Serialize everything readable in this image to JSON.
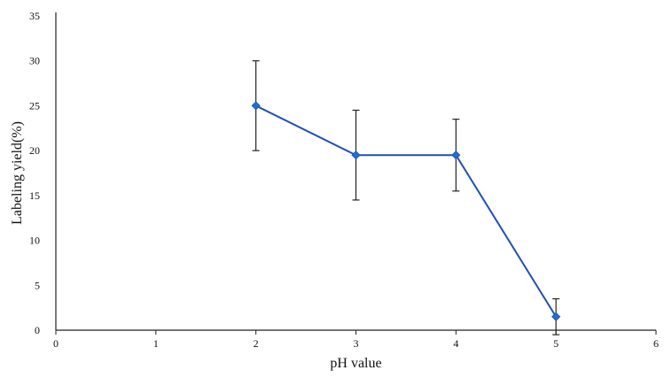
{
  "chart_data": {
    "type": "line",
    "xlabel": "pH value",
    "ylabel": "Labeling yield(%)",
    "xlim": [
      0,
      6
    ],
    "ylim": [
      0,
      35
    ],
    "x_ticks": [
      "0",
      "1",
      "2",
      "3",
      "4",
      "5",
      "6"
    ],
    "y_ticks": [
      "0",
      "5",
      "10",
      "15",
      "20",
      "25",
      "30",
      "35"
    ],
    "grid": false,
    "series": [
      {
        "x": [
          2,
          3,
          4,
          5
        ],
        "y": [
          25,
          19.5,
          19.5,
          1.5
        ],
        "error": [
          5,
          5,
          4,
          2
        ],
        "color": "#1f4fb4",
        "marker_color": "#1f6fd0",
        "marker": "diamond"
      }
    ],
    "axis_color": "#222222",
    "errorbar_color": "#222222"
  }
}
